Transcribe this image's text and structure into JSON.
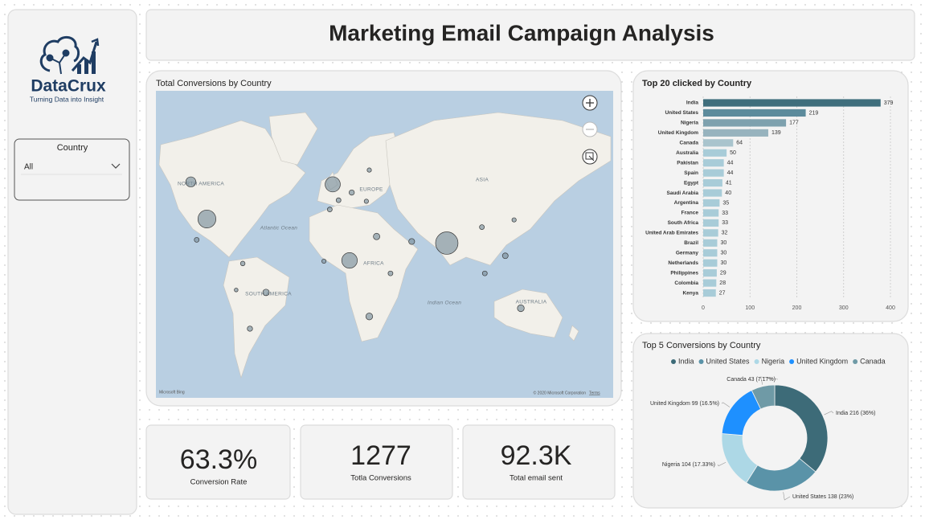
{
  "header": {
    "title": "Marketing Email Campaign Analysis"
  },
  "sidebar": {
    "brand": "DataCrux",
    "tagline": "Turning Data into Insight",
    "slicer": {
      "title": "Country",
      "value": "All"
    }
  },
  "kpis": [
    {
      "value": "63.3%",
      "label": "Conversion Rate"
    },
    {
      "value": "1277",
      "label": "Totla Conversions"
    },
    {
      "value": "92.3K",
      "label": "Total email sent"
    }
  ],
  "chart_data": [
    {
      "type": "bubble-map",
      "title": "Total Conversions by Country",
      "color": "#7a8f9b",
      "x": [
        78,
        -86,
        11.5,
        0,
        -97,
        128.6,
        25,
        -45.6,
        30,
        -93,
        54,
        118,
        104,
        13,
        4,
        -2,
        -56.6,
        -61.5,
        124,
        102,
        -6,
        39.5,
        23,
        25,
        -66
      ],
      "y": [
        21,
        35,
        10,
        51.5,
        52.5,
        -21,
        -26,
        -11,
        25,
        23,
        22,
        13,
        1.5,
        48,
        44.5,
        40,
        -33,
        8,
        34.5,
        30.5,
        9.5,
        1.5,
        44,
        57,
        -9.4
      ],
      "sizes": [
        216,
        138,
        104,
        99,
        43,
        20,
        20,
        18,
        18,
        10,
        15,
        14,
        10,
        12,
        10,
        10,
        12,
        9,
        8,
        10,
        8,
        10,
        8,
        8,
        6
      ],
      "regions": [
        "NORTH AMERICA",
        "EUROPE",
        "ASIA",
        "AFRICA",
        "SOUTH AMERICA",
        "AUSTRALIA",
        "Atlantic Ocean",
        "Indian Ocean"
      ],
      "attribution": "© 2020 Microsoft Corporation",
      "terms": "Terms",
      "provider": "Microsoft Bing"
    },
    {
      "type": "bar",
      "orientation": "horizontal",
      "title": "Top 20 clicked by Country",
      "categories": [
        "India",
        "United States",
        "Nigeria",
        "United Kingdom",
        "Canada",
        "Australia",
        "Pakistan",
        "Spain",
        "Egypt",
        "Saudi Arabia",
        "Argentina",
        "France",
        "South Africa",
        "United Arab Emirates",
        "Brazil",
        "Germany",
        "Netherlands",
        "Philippines",
        "Colombia",
        "Kenya"
      ],
      "values": [
        379,
        219,
        177,
        139,
        64,
        50,
        44,
        44,
        41,
        40,
        35,
        33,
        33,
        32,
        30,
        30,
        30,
        29,
        28,
        27
      ],
      "colors": [
        "#3f6e7c",
        "#5c8b9c",
        "#7ea1ae",
        "#97b3be",
        "#a9c4cd",
        "#a8ccd8",
        "#a8ccd8",
        "#a8ccd8",
        "#a8ccd8",
        "#a8ccd8",
        "#a8ccd8",
        "#a8ccd8",
        "#a8ccd8",
        "#a8ccd8",
        "#a8ccd8",
        "#a8ccd8",
        "#a8ccd8",
        "#a8ccd8",
        "#a8ccd8",
        "#a8ccd8"
      ],
      "xlim": [
        0,
        400
      ],
      "xticks": [
        0,
        100,
        200,
        300,
        400
      ],
      "grid": true
    },
    {
      "type": "donut",
      "title": "Top 5 Conversions by Country",
      "legend": "top",
      "categories": [
        "India",
        "United States",
        "Nigeria",
        "United Kingdom",
        "Canada"
      ],
      "values": [
        216,
        138,
        104,
        99,
        43
      ],
      "value_labels": [
        "India 216 (36%)",
        "United States 138 (23%)",
        "Nigeria 104 (17.33%)",
        "United Kingdom 99 (16.5%)",
        "Canada 43 (7.17%)"
      ],
      "colors": [
        "#3d6b78",
        "#5a93a8",
        "#add8e6",
        "#1e90ff",
        "#6f9aa6"
      ]
    }
  ]
}
